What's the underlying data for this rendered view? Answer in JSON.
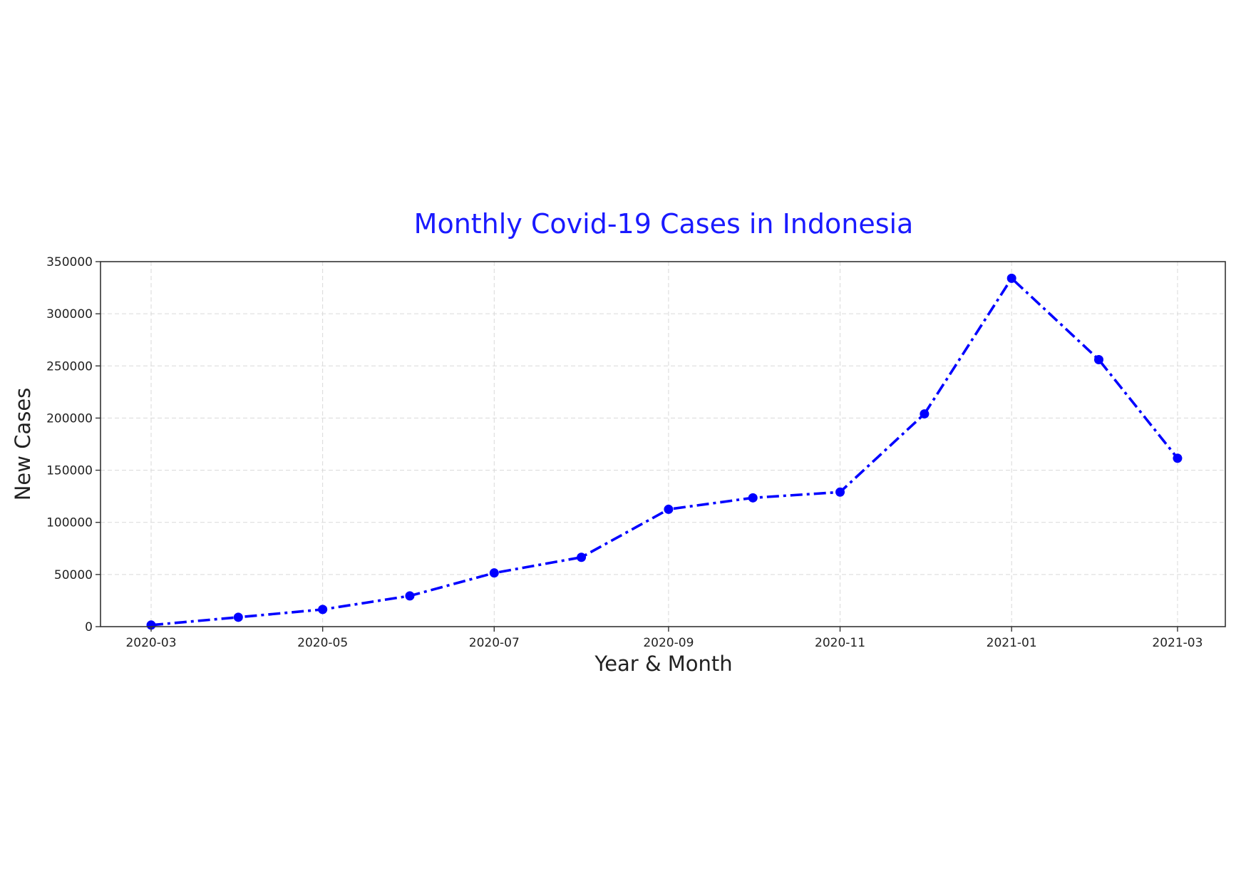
{
  "chart_data": {
    "type": "line",
    "title": "Monthly Covid-19 Cases in Indonesia",
    "xlabel": "Year & Month",
    "ylabel": "New Cases",
    "x_ticks": [
      "2020-03",
      "2020-05",
      "2020-07",
      "2020-09",
      "2020-11",
      "2021-01",
      "2021-03"
    ],
    "y_ticks": [
      0,
      50000,
      100000,
      150000,
      200000,
      250000,
      300000,
      350000
    ],
    "ylim": [
      0,
      350000
    ],
    "xlim": [
      "2020-02-12",
      "2021-03-18"
    ],
    "grid": true,
    "series": [
      {
        "color": "#0000ff",
        "line_style": "dash-dot",
        "marker": "circle",
        "points": [
          {
            "x": "2020-03",
            "y": 1500
          },
          {
            "x": "2020-04",
            "y": 9000
          },
          {
            "x": "2020-05",
            "y": 16500
          },
          {
            "x": "2020-06",
            "y": 29500
          },
          {
            "x": "2020-07",
            "y": 51500
          },
          {
            "x": "2020-08",
            "y": 66500
          },
          {
            "x": "2020-09",
            "y": 112500
          },
          {
            "x": "2020-10",
            "y": 123500
          },
          {
            "x": "2020-11",
            "y": 129000
          },
          {
            "x": "2020-12",
            "y": 204000
          },
          {
            "x": "2021-01",
            "y": 334000
          },
          {
            "x": "2021-02",
            "y": 256000
          },
          {
            "x": "2021-03",
            "y": 161500
          }
        ]
      }
    ]
  }
}
